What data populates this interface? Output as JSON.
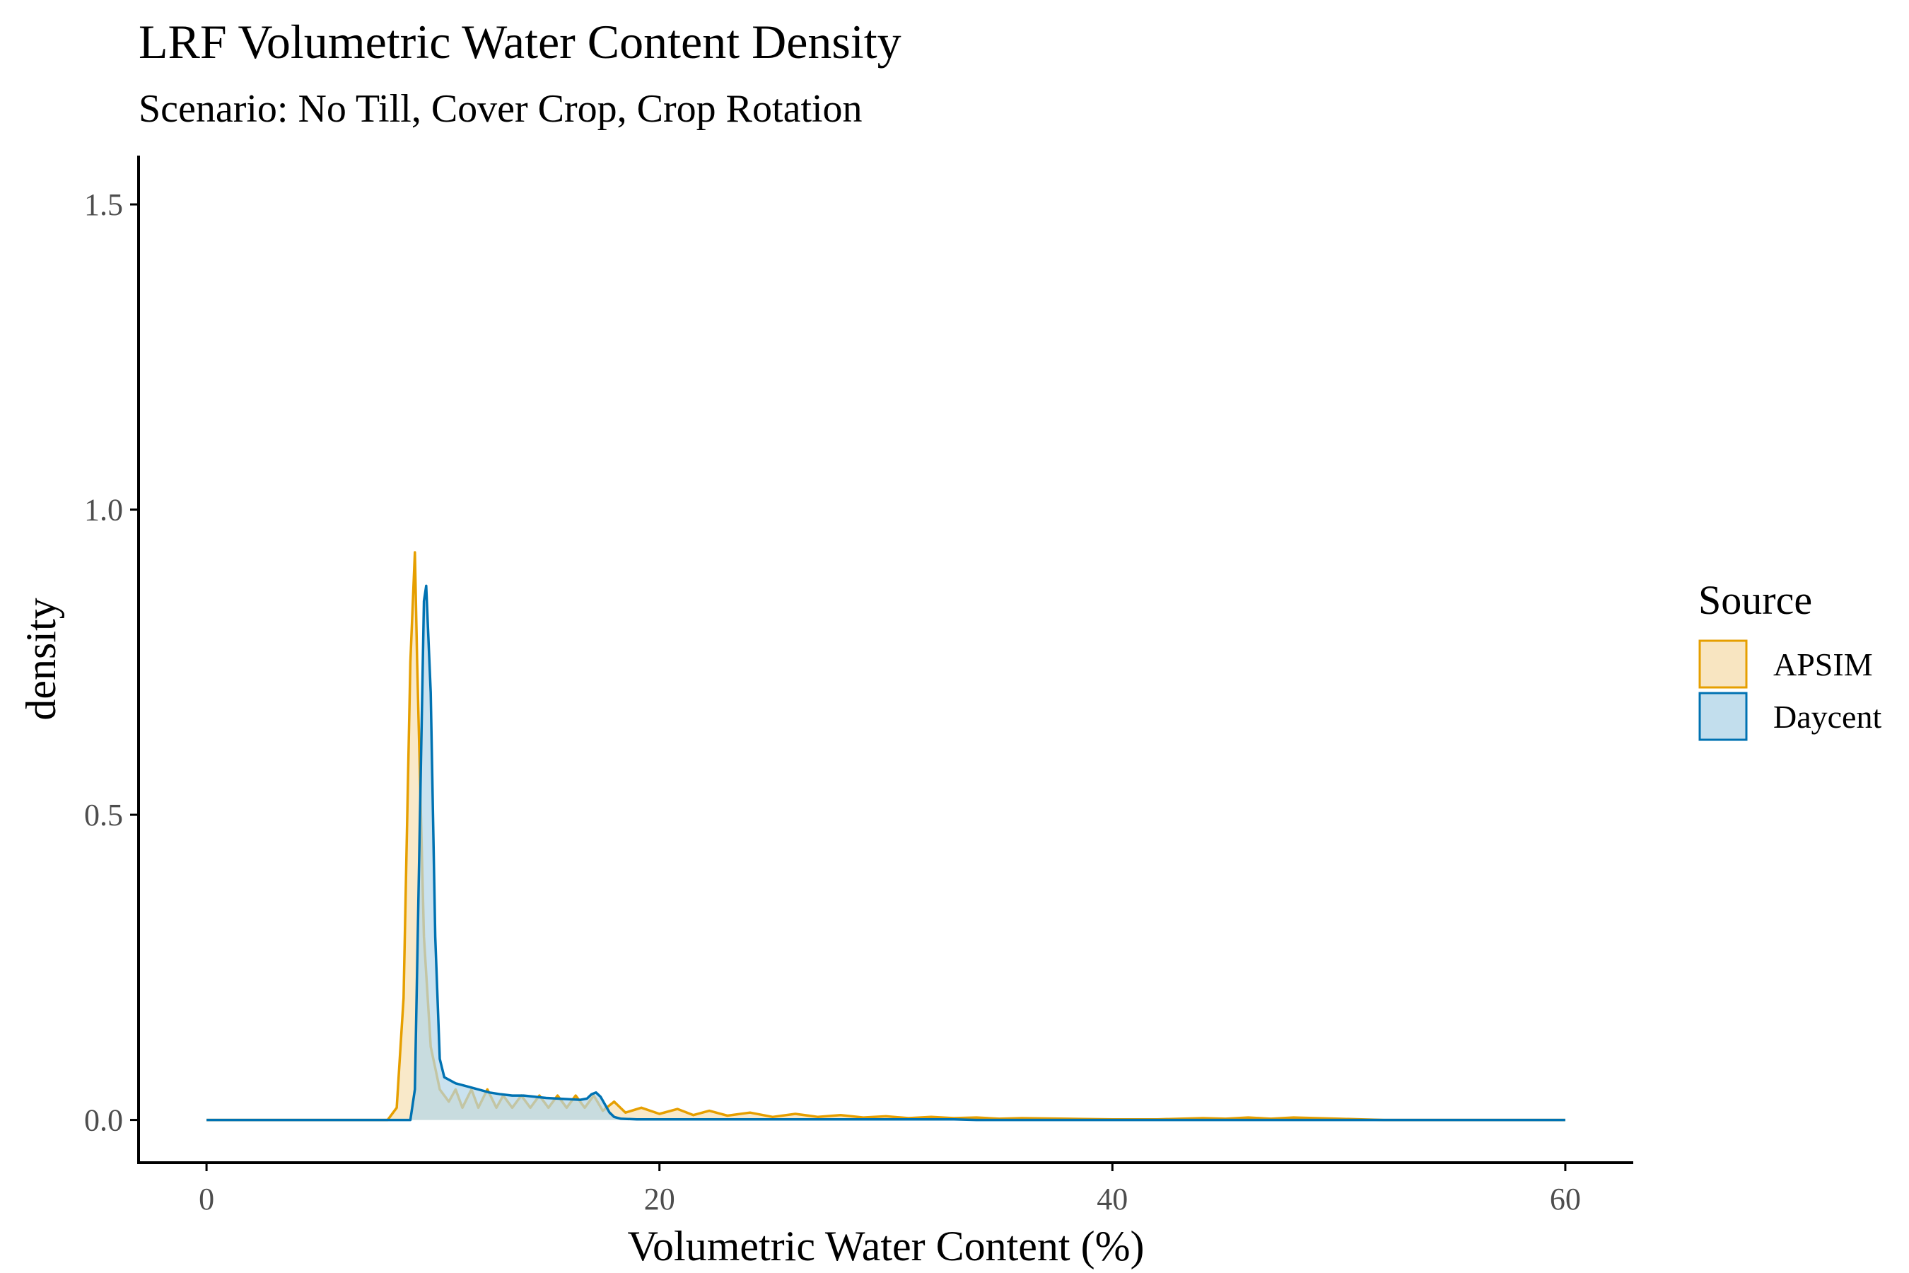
{
  "chart_data": {
    "type": "area",
    "title": "LRF Volumetric Water Content Density",
    "subtitle": "Scenario: No Till, Cover Crop, Crop Rotation",
    "xlabel": "Volumetric Water Content (%)",
    "ylabel": "density",
    "xlim": [
      -3,
      63
    ],
    "ylim": [
      -0.07,
      1.58
    ],
    "x_ticks": [
      0,
      20,
      40,
      60
    ],
    "x_tick_labels": [
      "0",
      "20",
      "40",
      "60"
    ],
    "y_ticks": [
      0.0,
      0.5,
      1.0,
      1.5
    ],
    "y_tick_labels": [
      "0.0",
      "0.5",
      "1.0",
      "1.5"
    ],
    "grid": false,
    "legend": {
      "title": "Source",
      "position": "right"
    },
    "series": [
      {
        "name": "APSIM",
        "stroke": "#E69F00",
        "fill": "#F6DFB2",
        "points": [
          [
            0,
            0
          ],
          [
            8,
            0
          ],
          [
            8.4,
            0.02
          ],
          [
            8.7,
            0.2
          ],
          [
            9.0,
            0.75
          ],
          [
            9.2,
            0.93
          ],
          [
            9.3,
            0.75
          ],
          [
            9.6,
            0.3
          ],
          [
            9.9,
            0.12
          ],
          [
            10.3,
            0.05
          ],
          [
            10.7,
            0.03
          ],
          [
            11.0,
            0.05
          ],
          [
            11.3,
            0.02
          ],
          [
            11.7,
            0.05
          ],
          [
            12.0,
            0.02
          ],
          [
            12.4,
            0.05
          ],
          [
            12.8,
            0.02
          ],
          [
            13.1,
            0.04
          ],
          [
            13.5,
            0.02
          ],
          [
            13.9,
            0.04
          ],
          [
            14.3,
            0.02
          ],
          [
            14.7,
            0.04
          ],
          [
            15.1,
            0.02
          ],
          [
            15.5,
            0.04
          ],
          [
            15.9,
            0.02
          ],
          [
            16.3,
            0.04
          ],
          [
            16.7,
            0.02
          ],
          [
            17.1,
            0.04
          ],
          [
            17.5,
            0.015
          ],
          [
            18.0,
            0.03
          ],
          [
            18.5,
            0.012
          ],
          [
            19.2,
            0.02
          ],
          [
            20.0,
            0.01
          ],
          [
            20.8,
            0.018
          ],
          [
            21.5,
            0.008
          ],
          [
            22.2,
            0.015
          ],
          [
            23.0,
            0.007
          ],
          [
            24.0,
            0.012
          ],
          [
            25.0,
            0.005
          ],
          [
            26.0,
            0.01
          ],
          [
            27.0,
            0.005
          ],
          [
            28.0,
            0.008
          ],
          [
            29.0,
            0.004
          ],
          [
            30.0,
            0.006
          ],
          [
            31.0,
            0.003
          ],
          [
            32.0,
            0.005
          ],
          [
            33.0,
            0.003
          ],
          [
            34.0,
            0.004
          ],
          [
            35.0,
            0.002
          ],
          [
            36.0,
            0.003
          ],
          [
            38.0,
            0.002
          ],
          [
            40.0,
            0.001
          ],
          [
            42.0,
            0.001
          ],
          [
            44.0,
            0.003
          ],
          [
            45.0,
            0.002
          ],
          [
            46.0,
            0.004
          ],
          [
            47.0,
            0.002
          ],
          [
            48.0,
            0.004
          ],
          [
            49.0,
            0.003
          ],
          [
            50.0,
            0.002
          ],
          [
            51.0,
            0.001
          ],
          [
            52.0,
            0
          ],
          [
            60.0,
            0
          ]
        ]
      },
      {
        "name": "Daycent",
        "stroke": "#0072B2",
        "fill": "#B3D6E8",
        "points": [
          [
            0,
            0
          ],
          [
            9.0,
            0
          ],
          [
            9.2,
            0.05
          ],
          [
            9.4,
            0.45
          ],
          [
            9.6,
            0.85
          ],
          [
            9.7,
            0.875
          ],
          [
            9.9,
            0.7
          ],
          [
            10.1,
            0.3
          ],
          [
            10.3,
            0.1
          ],
          [
            10.5,
            0.07
          ],
          [
            11.0,
            0.06
          ],
          [
            11.5,
            0.055
          ],
          [
            12.0,
            0.05
          ],
          [
            12.5,
            0.045
          ],
          [
            13.0,
            0.042
          ],
          [
            13.5,
            0.04
          ],
          [
            14.0,
            0.04
          ],
          [
            14.5,
            0.038
          ],
          [
            15.0,
            0.036
          ],
          [
            15.5,
            0.035
          ],
          [
            16.0,
            0.034
          ],
          [
            16.5,
            0.033
          ],
          [
            16.8,
            0.035
          ],
          [
            17.0,
            0.042
          ],
          [
            17.2,
            0.045
          ],
          [
            17.4,
            0.038
          ],
          [
            17.6,
            0.025
          ],
          [
            17.8,
            0.012
          ],
          [
            18.0,
            0.005
          ],
          [
            18.3,
            0.002
          ],
          [
            19.0,
            0.001
          ],
          [
            25.0,
            0.001
          ],
          [
            33.0,
            0.001
          ],
          [
            34.0,
            0
          ],
          [
            60.0,
            0
          ]
        ]
      }
    ]
  }
}
